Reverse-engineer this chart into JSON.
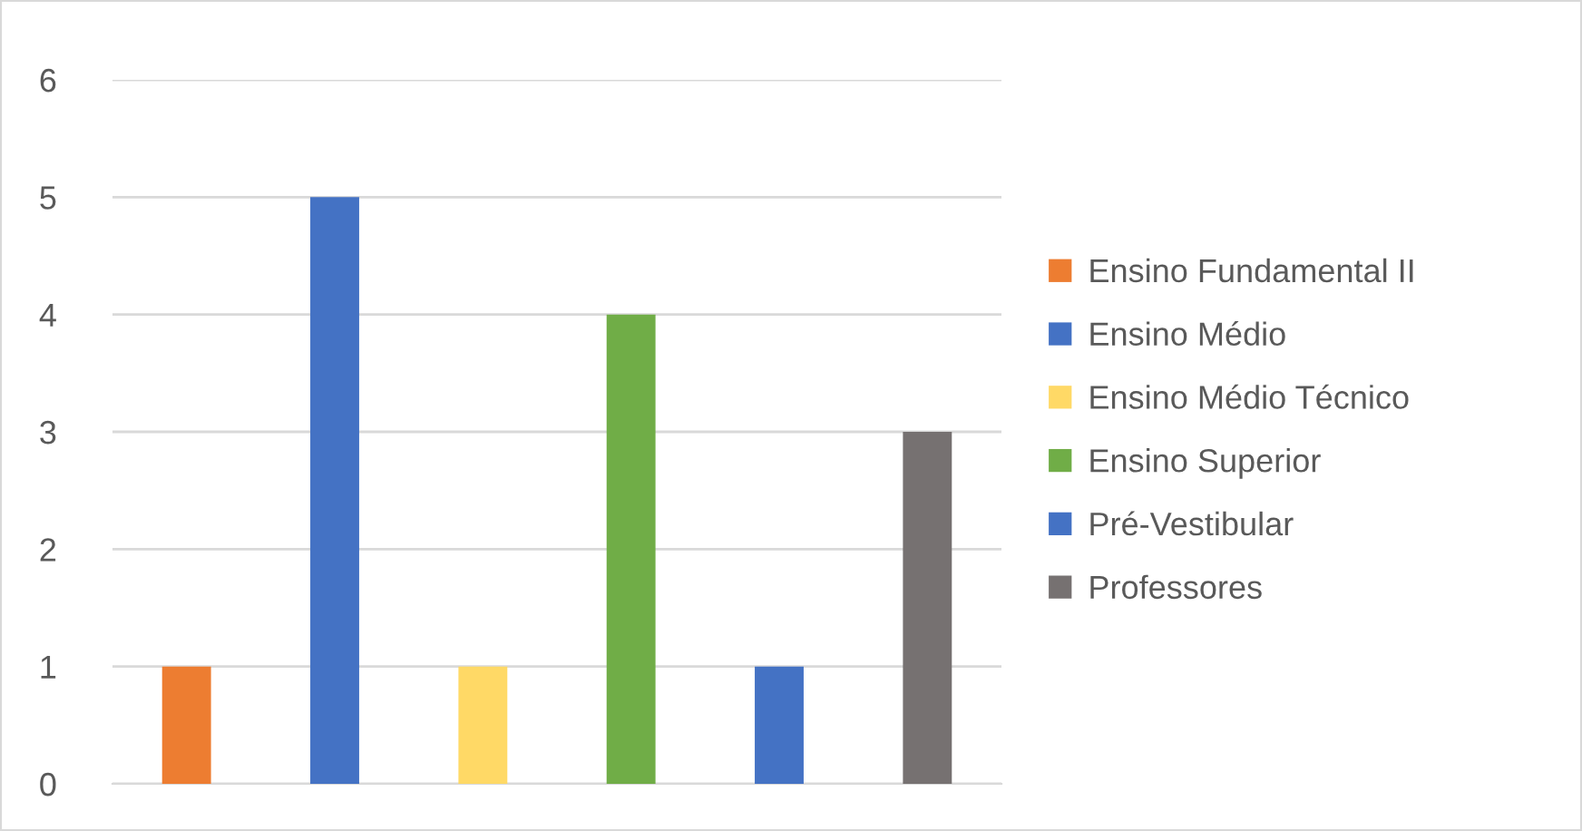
{
  "chart_data": {
    "type": "bar",
    "categories": [
      null,
      null,
      null,
      null,
      null,
      null
    ],
    "series": [
      {
        "name": "Ensino Fundamental II",
        "color": "#ed7d31",
        "values": [
          1,
          null,
          null,
          null,
          null,
          null
        ]
      },
      {
        "name": "Ensino Médio",
        "color": "#4472c4",
        "values": [
          null,
          5,
          null,
          null,
          null,
          null
        ]
      },
      {
        "name": "Ensino Médio Técnico",
        "color": "#ffd966",
        "values": [
          null,
          null,
          1,
          null,
          null,
          null
        ]
      },
      {
        "name": "Ensino Superior",
        "color": "#70ad47",
        "values": [
          null,
          null,
          null,
          4,
          null,
          null
        ]
      },
      {
        "name": "Pré-Vestibular",
        "color": "#4472c4",
        "values": [
          null,
          null,
          null,
          null,
          1,
          null
        ]
      },
      {
        "name": "Professores",
        "color": "#767171",
        "values": [
          null,
          null,
          null,
          null,
          null,
          3
        ]
      }
    ],
    "ylim": [
      0,
      6
    ],
    "yticks": [
      0,
      1,
      2,
      3,
      4,
      5,
      6
    ],
    "grid": "y",
    "legend": "right"
  }
}
